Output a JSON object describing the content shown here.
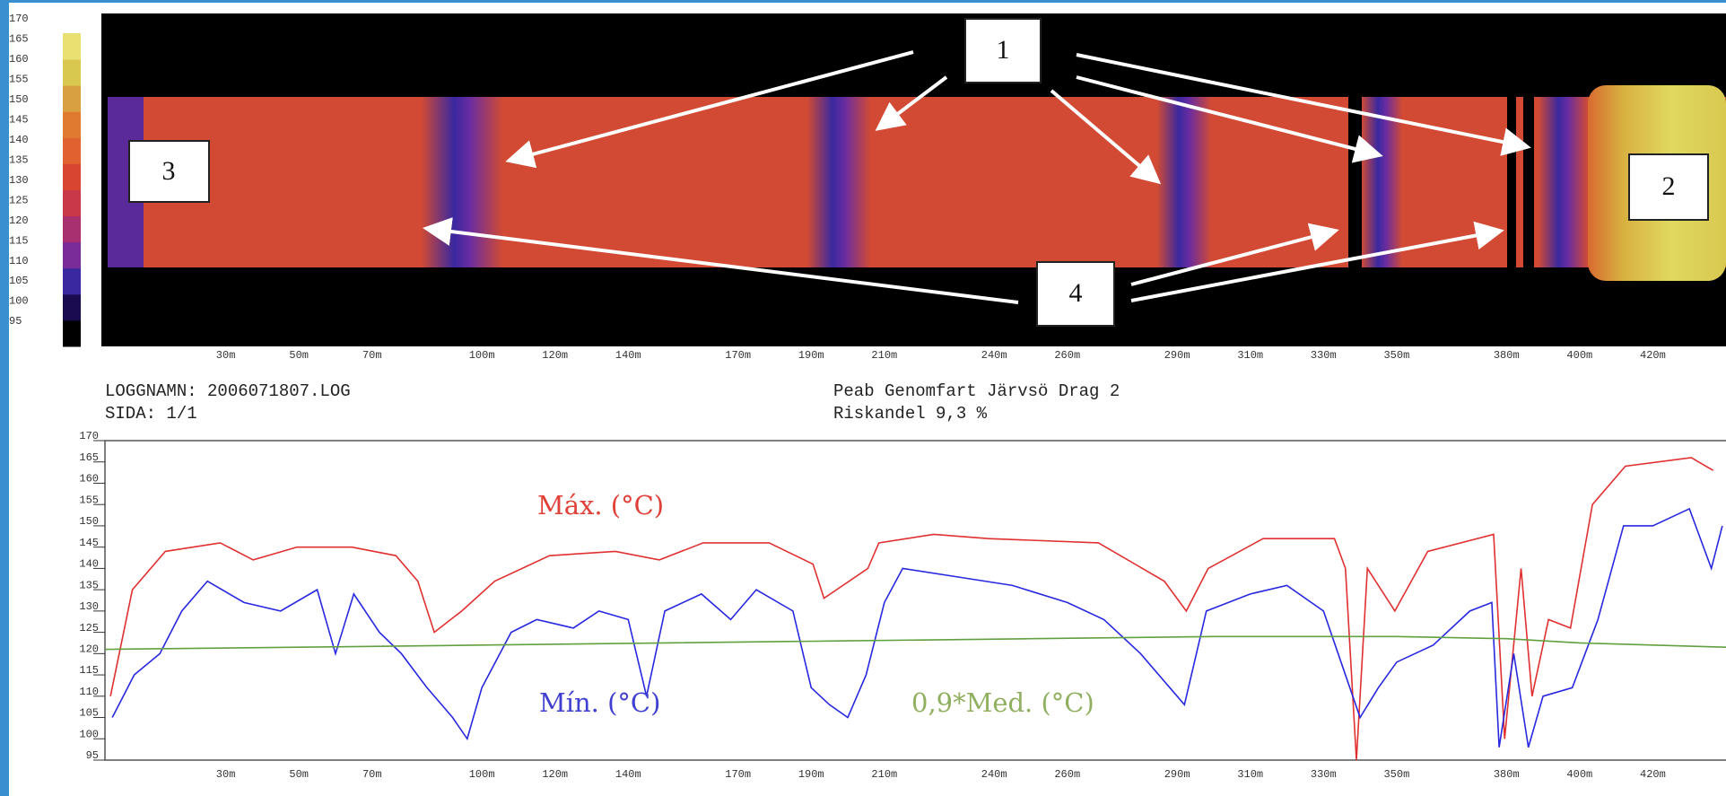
{
  "chart_data": [
    {
      "type": "heatmap",
      "yticks": [
        170,
        165,
        160,
        155,
        150,
        145,
        140,
        135,
        130,
        125,
        120,
        115,
        110,
        105,
        100,
        95
      ],
      "ylim": [
        95,
        170
      ],
      "colorscale": [
        "#000000",
        "#1a0a50",
        "#3a28a0",
        "#7a2c98",
        "#a83070",
        "#c83848",
        "#d84530",
        "#e06230",
        "#e07a30",
        "#d8a040",
        "#d8c850",
        "#e8e070"
      ],
      "xlim": [
        -3,
        440
      ],
      "xticks": [
        {
          "value": 30,
          "label": "30m"
        },
        {
          "value": 50,
          "label": "50m"
        },
        {
          "value": 70,
          "label": "70m"
        },
        {
          "value": 100,
          "label": "100m"
        },
        {
          "value": 120,
          "label": "120m"
        },
        {
          "value": 140,
          "label": "140m"
        },
        {
          "value": 170,
          "label": "170m"
        },
        {
          "value": 190,
          "label": "190m"
        },
        {
          "value": 210,
          "label": "210m"
        },
        {
          "value": 240,
          "label": "240m"
        },
        {
          "value": 260,
          "label": "260m"
        },
        {
          "value": 290,
          "label": "290m"
        },
        {
          "value": 310,
          "label": "310m"
        },
        {
          "value": 330,
          "label": "330m"
        },
        {
          "value": 350,
          "label": "350m"
        },
        {
          "value": 380,
          "label": "380m"
        },
        {
          "value": 400,
          "label": "400m"
        },
        {
          "value": 420,
          "label": "420m"
        }
      ],
      "annotations": [
        "1",
        "2",
        "3",
        "4"
      ]
    },
    {
      "type": "line",
      "xlim": [
        -3,
        440
      ],
      "ylim": [
        95,
        170
      ],
      "yticks": [
        170,
        165,
        160,
        155,
        150,
        145,
        140,
        135,
        130,
        125,
        120,
        115,
        110,
        105,
        100,
        95
      ],
      "xticks": [
        {
          "value": 30,
          "label": "30m"
        },
        {
          "value": 50,
          "label": "50m"
        },
        {
          "value": 70,
          "label": "70m"
        },
        {
          "value": 100,
          "label": "100m"
        },
        {
          "value": 120,
          "label": "120m"
        },
        {
          "value": 140,
          "label": "140m"
        },
        {
          "value": 170,
          "label": "170m"
        },
        {
          "value": 190,
          "label": "190m"
        },
        {
          "value": 210,
          "label": "210m"
        },
        {
          "value": 240,
          "label": "240m"
        },
        {
          "value": 260,
          "label": "260m"
        },
        {
          "value": 290,
          "label": "290m"
        },
        {
          "value": 310,
          "label": "310m"
        },
        {
          "value": 330,
          "label": "330m"
        },
        {
          "value": 350,
          "label": "350m"
        },
        {
          "value": 380,
          "label": "380m"
        },
        {
          "value": 400,
          "label": "400m"
        },
        {
          "value": 420,
          "label": "420m"
        }
      ],
      "series": [
        {
          "name": "Máx. (°C)",
          "color": "#e03030",
          "label_color": "#e04038",
          "x": [
            -1.5,
            4.5,
            13.5,
            28.5,
            37.5,
            49.5,
            64.5,
            76.5,
            82.5,
            87,
            94.5,
            103.5,
            118.5,
            136.5,
            148.5,
            160.5,
            178.5,
            190.5,
            193.5,
            205.5,
            208.5,
            223.5,
            238.5,
            268.5,
            286.5,
            292.5,
            298.5,
            313.5,
            333,
            336,
            339,
            342,
            349.5,
            358.5,
            376.5,
            379.5,
            384,
            387,
            391.5,
            397.5,
            403.5,
            412.5,
            430.5,
            436.5
          ],
          "values": [
            110,
            135,
            144,
            146,
            142,
            145,
            145,
            143,
            137,
            125,
            130,
            137,
            143,
            144,
            142,
            146,
            146,
            141,
            133,
            140,
            146,
            148,
            147,
            146,
            137,
            130,
            140,
            147,
            147,
            140,
            95,
            140,
            130,
            144,
            148,
            100,
            140,
            110,
            128,
            126,
            155,
            164,
            166,
            163
          ]
        },
        {
          "name": "Mín. (°C)",
          "color": "#2828e0",
          "label_color": "#4040d0",
          "x": [
            -1,
            5,
            12,
            18,
            25,
            35,
            45,
            55,
            60,
            65,
            72,
            78,
            85,
            92,
            96,
            100,
            108,
            115,
            125,
            132,
            140,
            145,
            150,
            160,
            168,
            175,
            185,
            190,
            195,
            200,
            205,
            210,
            215,
            230,
            245,
            260,
            270,
            280,
            288,
            292,
            298,
            310,
            320,
            330,
            336,
            340,
            345,
            350,
            360,
            370,
            376,
            378,
            382,
            386,
            390,
            398,
            405,
            412,
            420,
            430,
            436,
            439
          ],
          "values": [
            105,
            115,
            120,
            130,
            137,
            132,
            130,
            135,
            120,
            134,
            125,
            120,
            112,
            105,
            100,
            112,
            125,
            128,
            126,
            130,
            128,
            110,
            130,
            134,
            128,
            135,
            130,
            112,
            108,
            105,
            115,
            132,
            140,
            138,
            136,
            132,
            128,
            120,
            112,
            108,
            130,
            134,
            136,
            130,
            115,
            105,
            112,
            118,
            122,
            130,
            132,
            98,
            120,
            98,
            110,
            112,
            128,
            150,
            150,
            154,
            140,
            150
          ]
        },
        {
          "name": "0,9*Med. (°C)",
          "color": "#60a040",
          "label_color": "#90b060",
          "x": [
            -3,
            50,
            100,
            150,
            200,
            250,
            300,
            350,
            380,
            400,
            440
          ],
          "values": [
            121,
            121.5,
            122,
            122.5,
            123,
            123.5,
            124,
            124,
            123.5,
            122.5,
            121.5
          ]
        }
      ]
    }
  ],
  "log_info": {
    "log_name": "LOGGNAMN: 2006071807.LOG",
    "page": "SIDA: 1/1",
    "project": "Peab Genomfart Järvsö Drag 2",
    "risk": "Riskandel 9,3 %"
  }
}
